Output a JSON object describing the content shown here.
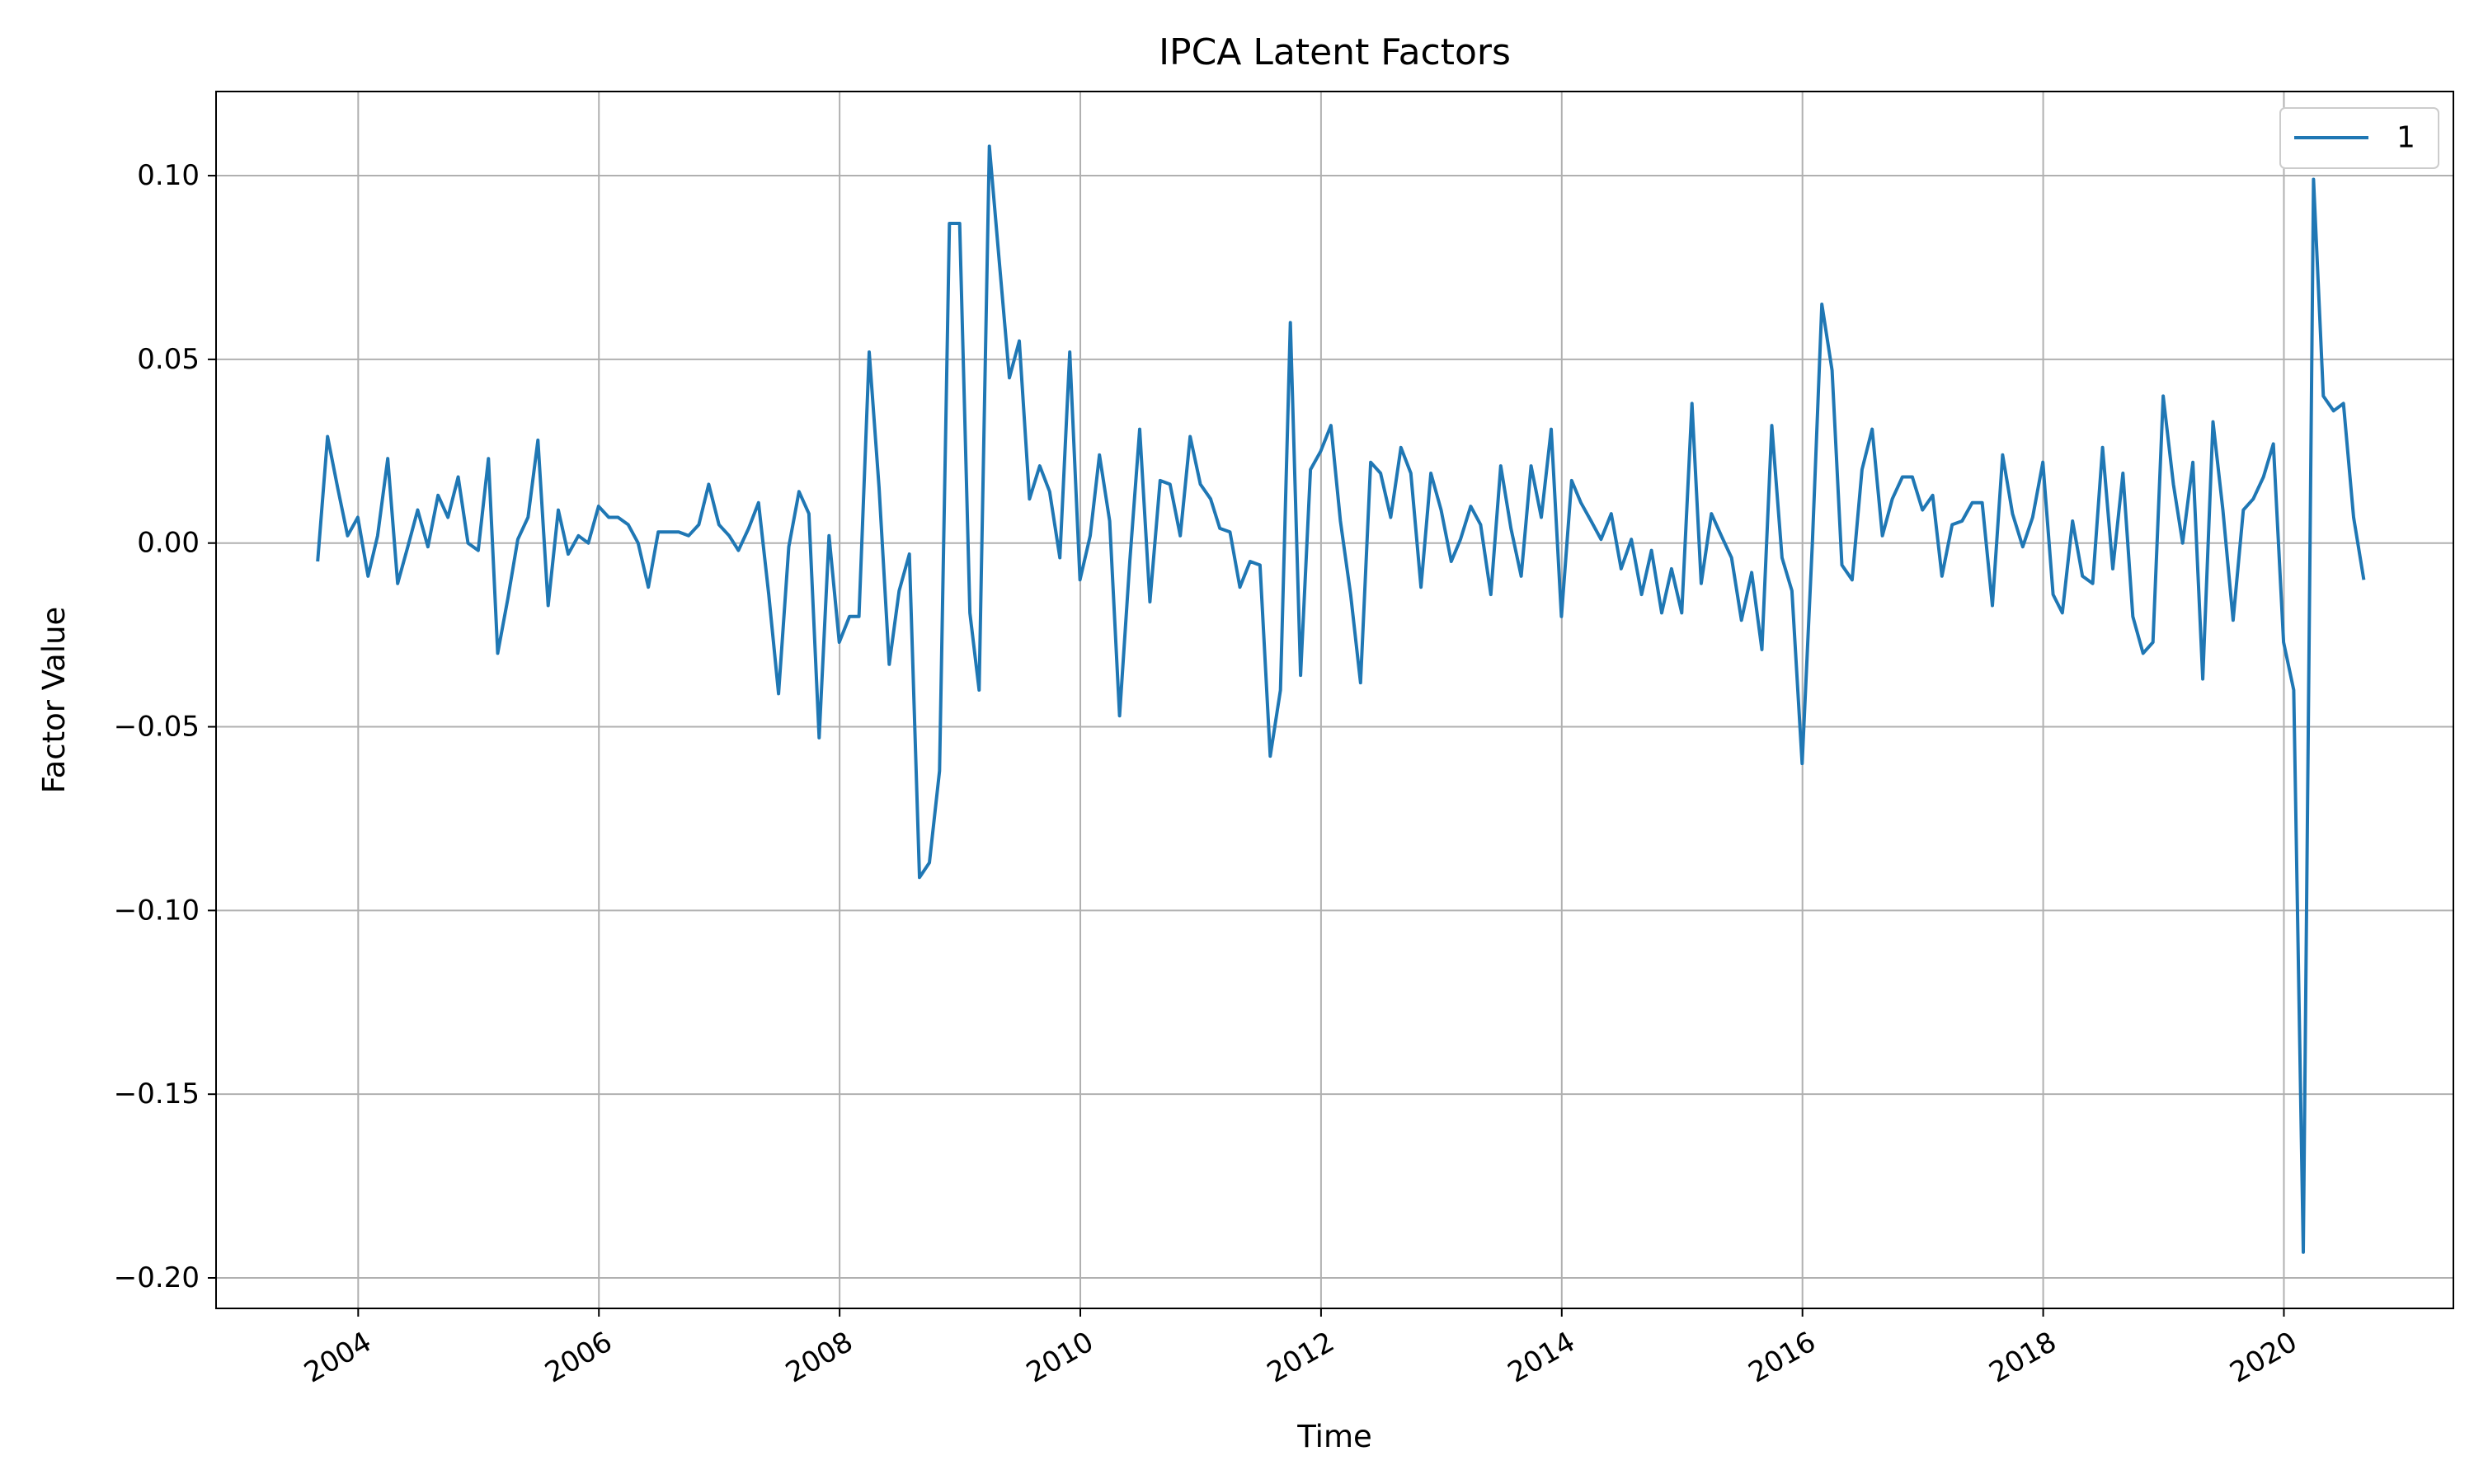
{
  "chart_data": {
    "type": "line",
    "title": "IPCA Latent Factors",
    "xlabel": "Time",
    "ylabel": "Factor Value",
    "grid": true,
    "legend_position": "top-right",
    "line_color": "#1f77b4",
    "x_ticks": [
      "2004",
      "2006",
      "2008",
      "2010",
      "2012",
      "2014",
      "2016",
      "2018",
      "2020"
    ],
    "y_ticks": [
      "0.10",
      "0.05",
      "0.00",
      "−0.05",
      "−0.10",
      "−0.15",
      "−0.20"
    ],
    "y_tick_values": [
      0.1,
      0.05,
      0.0,
      -0.05,
      -0.1,
      -0.15,
      -0.2
    ],
    "xlim": [
      "2002-10-27",
      "2021-05-30"
    ],
    "ylim": [
      -0.2083,
      0.1229
    ],
    "series": [
      {
        "name": "1",
        "start": "2003-08-31",
        "frequency": "monthly",
        "values": [
          -0.005,
          0.029,
          0.015,
          0.002,
          0.007,
          -0.009,
          0.002,
          0.023,
          -0.011,
          -0.001,
          0.009,
          -0.001,
          0.013,
          0.007,
          0.018,
          0.0,
          -0.002,
          0.023,
          -0.03,
          -0.015,
          0.001,
          0.007,
          0.028,
          -0.017,
          0.009,
          -0.003,
          0.002,
          0.0,
          0.01,
          0.007,
          0.007,
          0.005,
          0.0,
          -0.012,
          0.003,
          0.003,
          0.003,
          0.002,
          0.005,
          0.016,
          0.005,
          0.002,
          -0.002,
          0.004,
          0.011,
          -0.014,
          -0.041,
          -0.001,
          0.014,
          0.008,
          -0.053,
          0.002,
          -0.027,
          -0.02,
          -0.02,
          0.052,
          0.015,
          -0.033,
          -0.013,
          -0.003,
          -0.091,
          -0.087,
          -0.062,
          0.087,
          0.087,
          -0.019,
          -0.04,
          0.108,
          0.077,
          0.045,
          0.055,
          0.012,
          0.021,
          0.014,
          -0.004,
          0.052,
          -0.01,
          0.002,
          0.024,
          0.006,
          -0.047,
          -0.005,
          0.031,
          -0.016,
          0.017,
          0.016,
          0.002,
          0.029,
          0.016,
          0.012,
          0.004,
          0.003,
          -0.012,
          -0.005,
          -0.006,
          -0.058,
          -0.04,
          0.06,
          -0.036,
          0.02,
          0.025,
          0.032,
          0.006,
          -0.014,
          -0.038,
          0.022,
          0.019,
          0.007,
          0.026,
          0.019,
          -0.012,
          0.019,
          0.009,
          -0.005,
          0.001,
          0.01,
          0.005,
          -0.014,
          0.021,
          0.004,
          -0.009,
          0.021,
          0.007,
          0.031,
          -0.02,
          0.017,
          0.011,
          0.006,
          0.001,
          0.008,
          -0.007,
          0.001,
          -0.014,
          -0.002,
          -0.019,
          -0.007,
          -0.019,
          0.038,
          -0.011,
          0.008,
          0.002,
          -0.004,
          -0.021,
          -0.008,
          -0.029,
          0.032,
          -0.004,
          -0.013,
          -0.06,
          0.0,
          0.065,
          0.047,
          -0.006,
          -0.01,
          0.02,
          0.031,
          0.002,
          0.012,
          0.018,
          0.018,
          0.009,
          0.013,
          -0.009,
          0.005,
          0.006,
          0.011,
          0.011,
          -0.017,
          0.024,
          0.008,
          -0.001,
          0.007,
          0.022,
          -0.014,
          -0.019,
          0.006,
          -0.009,
          -0.011,
          0.026,
          -0.007,
          0.019,
          -0.02,
          -0.03,
          -0.027,
          0.04,
          0.016,
          0.0,
          0.022,
          -0.037,
          0.033,
          0.009,
          -0.021,
          0.009,
          0.012,
          0.018,
          0.027,
          -0.027,
          -0.04,
          -0.193,
          0.099,
          0.04,
          0.036,
          0.038,
          0.007,
          -0.01
        ]
      }
    ]
  }
}
